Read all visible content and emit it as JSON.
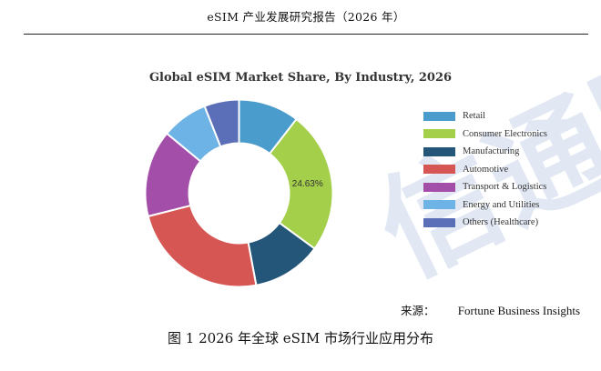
{
  "header": {
    "title": "eSIM 产业发展研究报告（2026 年）"
  },
  "watermark": {
    "text": "信通院"
  },
  "chart_data": {
    "type": "pie",
    "title": "Global eSIM Market Share, By Industry, 2026",
    "donut": true,
    "legend_position": "right",
    "categories": [
      "Retail",
      "Consumer Electronics",
      "Manufacturing",
      "Automotive",
      "Transport & Logistics",
      "Energy and Utilities",
      "Others (Healthcare)"
    ],
    "values": [
      10.5,
      24.63,
      12.0,
      24.0,
      15.0,
      8.0,
      6.0
    ],
    "colors": [
      "#4a9ccc",
      "#a3cf4a",
      "#24567a",
      "#d65654",
      "#a34ea9",
      "#6db3e5",
      "#5a6fb8"
    ],
    "data_labels": [
      {
        "category": "Consumer Electronics",
        "text": "24.63%"
      }
    ]
  },
  "source": {
    "label": "来源：",
    "value": "Fortune Business Insights"
  },
  "caption": {
    "text": "图 1 2026 年全球 eSIM 市场行业应用分布"
  }
}
